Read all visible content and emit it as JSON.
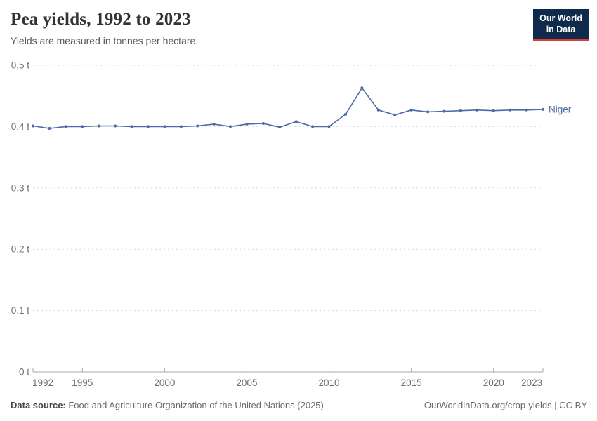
{
  "header": {
    "title": "Pea yields, 1992 to 2023",
    "subtitle": "Yields are measured in tonnes per hectare.",
    "logo": {
      "line1": "Our World",
      "line2": "in Data"
    }
  },
  "chart_data": {
    "type": "line",
    "title": "Pea yields, 1992 to 2023",
    "subtitle": "Yields are measured in tonnes per hectare.",
    "unit": "tonnes per hectare",
    "xlabel": "",
    "ylabel": "",
    "xlim": [
      1992,
      2023
    ],
    "ylim": [
      0,
      0.5
    ],
    "grid": "horizontal-dashed",
    "legend": "end-of-line-label",
    "x_ticks": [
      {
        "value": 1992,
        "label": "1992"
      },
      {
        "value": 1995,
        "label": "1995"
      },
      {
        "value": 2000,
        "label": "2000"
      },
      {
        "value": 2005,
        "label": "2005"
      },
      {
        "value": 2010,
        "label": "2010"
      },
      {
        "value": 2015,
        "label": "2015"
      },
      {
        "value": 2020,
        "label": "2020"
      },
      {
        "value": 2023,
        "label": "2023"
      }
    ],
    "y_ticks": [
      {
        "value": 0,
        "label": "0 t"
      },
      {
        "value": 0.1,
        "label": "0.1 t"
      },
      {
        "value": 0.2,
        "label": "0.2 t"
      },
      {
        "value": 0.3,
        "label": "0.3 t"
      },
      {
        "value": 0.4,
        "label": "0.4 t"
      },
      {
        "value": 0.5,
        "label": "0.5 t"
      }
    ],
    "series": [
      {
        "name": "Niger",
        "color": "#4a6ba8",
        "x": [
          1992,
          1993,
          1994,
          1995,
          1996,
          1997,
          1998,
          1999,
          2000,
          2001,
          2002,
          2003,
          2004,
          2005,
          2006,
          2007,
          2008,
          2009,
          2010,
          2011,
          2012,
          2013,
          2014,
          2015,
          2016,
          2017,
          2018,
          2019,
          2020,
          2021,
          2022,
          2023
        ],
        "values": [
          0.401,
          0.397,
          0.4,
          0.4,
          0.401,
          0.401,
          0.4,
          0.4,
          0.4,
          0.4,
          0.401,
          0.404,
          0.4,
          0.404,
          0.405,
          0.399,
          0.408,
          0.4,
          0.4,
          0.42,
          0.463,
          0.427,
          0.419,
          0.427,
          0.424,
          0.425,
          0.426,
          0.427,
          0.426,
          0.427,
          0.427,
          0.428
        ]
      }
    ]
  },
  "footer": {
    "source_label": "Data source:",
    "source_text": " Food and Agriculture Organization of the United Nations (2025)",
    "credit": "OurWorldinData.org/crop-yields | CC BY"
  },
  "colors": {
    "line": "#4a6ba8",
    "grid": "#dadada",
    "axis": "#a8a8a8",
    "tick_text": "#6e6e6e",
    "logo_bg": "#102a4e",
    "logo_red": "#dc3e32"
  }
}
